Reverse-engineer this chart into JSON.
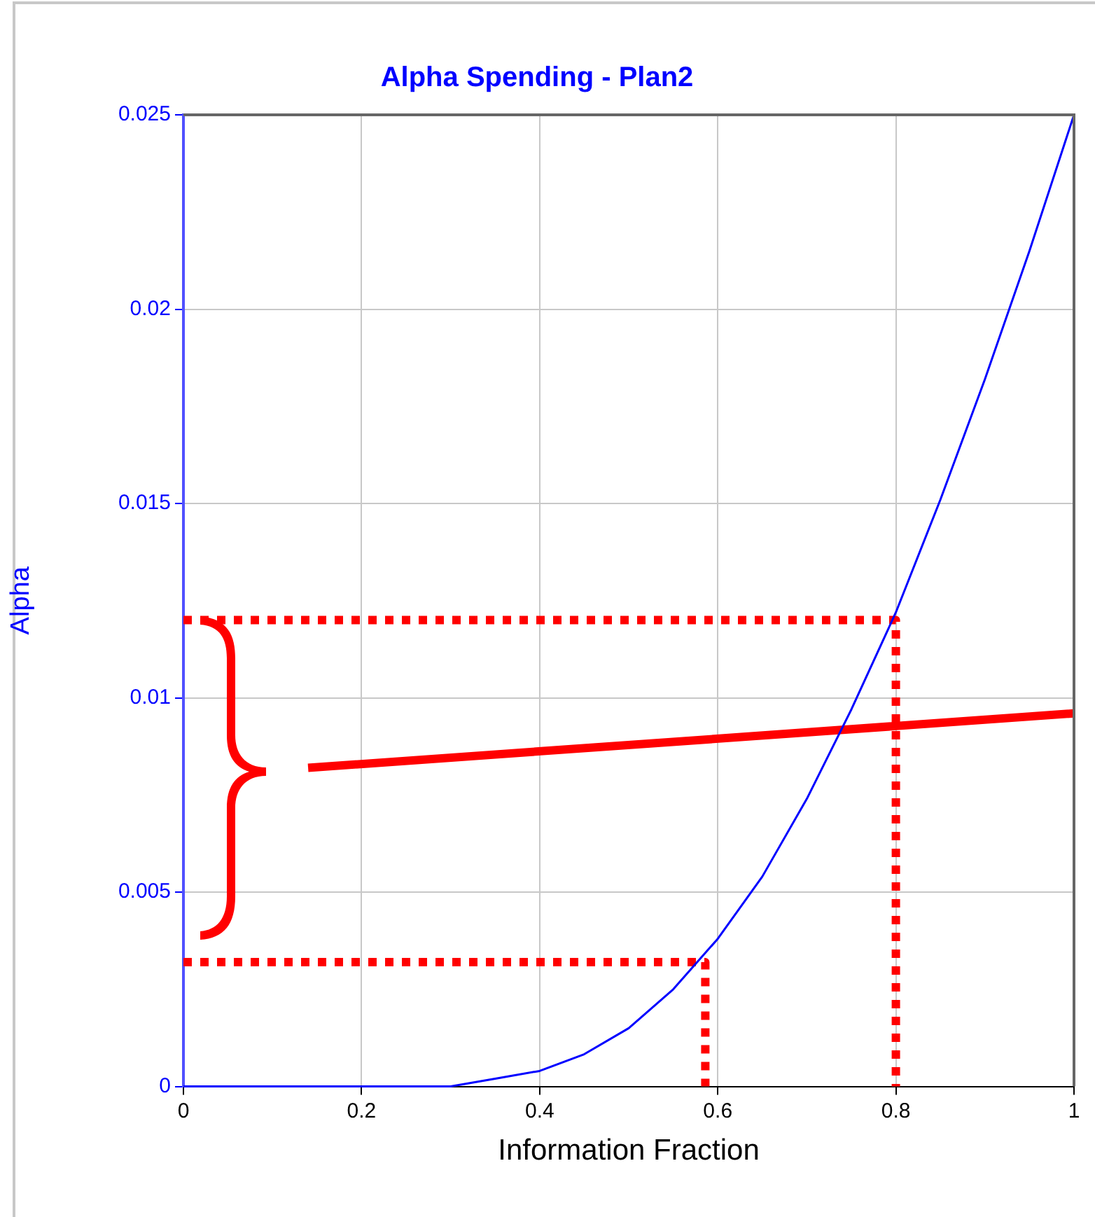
{
  "chart_data": {
    "type": "line",
    "title": "Alpha Spending - Plan2",
    "xlabel": "Information Fraction",
    "ylabel": "Alpha",
    "xlim": [
      0,
      1
    ],
    "xticks": [
      0,
      0.2,
      0.4,
      0.6,
      0.8,
      1
    ],
    "ylim": [
      0,
      0.025
    ],
    "yticks": [
      0,
      0.005,
      0.01,
      0.015,
      0.02,
      0.025
    ],
    "grid": true,
    "series": [
      {
        "color": "#0000ff",
        "x": [
          0,
          0.05,
          0.1,
          0.15,
          0.2,
          0.25,
          0.3,
          0.35,
          0.4,
          0.45,
          0.5,
          0.55,
          0.6,
          0.65,
          0.7,
          0.75,
          0.8,
          0.85,
          0.9,
          0.95,
          1
        ],
        "values": [
          0,
          0,
          0,
          0,
          0,
          0,
          0,
          0.0002,
          0.0004,
          0.00083,
          0.0015,
          0.0025,
          0.0038,
          0.0054,
          0.0074,
          0.0097,
          0.0122,
          0.0151,
          0.0182,
          0.0215,
          0.025
        ]
      },
      {
        "color": "#ff0000",
        "line_style": "dotted",
        "x": [
          0,
          0.8,
          0.8
        ],
        "values": [
          0.012,
          0.012,
          0
        ]
      },
      {
        "color": "#ff0000",
        "line_style": "dotted",
        "x": [
          0,
          0.586,
          0.586
        ],
        "values": [
          0.0032,
          0.0032,
          0
        ]
      },
      {
        "color": "#ff0000",
        "line_style": "solid",
        "x": [
          0.14,
          1
        ],
        "values": [
          0.0082,
          0.0096
        ]
      }
    ]
  }
}
